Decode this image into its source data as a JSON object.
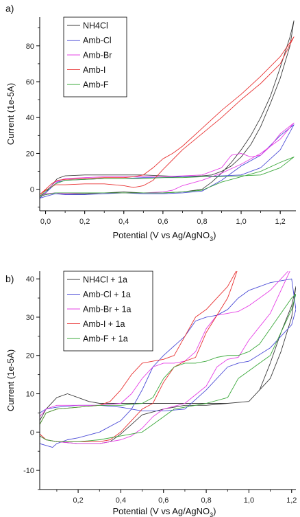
{
  "chart_data": [
    {
      "panel": "a)",
      "type": "line",
      "xlabel": "Potential (V vs Ag/AgNO",
      "xlabel_sub": "3",
      "xlabel_end": ")",
      "ylabel": "Current (1e-5A)",
      "xlim": [
        -0.03,
        1.28
      ],
      "ylim": [
        -12,
        96
      ],
      "xticks": [
        0.0,
        0.2,
        0.4,
        0.6,
        0.8,
        1.0,
        1.2
      ],
      "xtick_labels": [
        "0,0",
        "0,2",
        "0,4",
        "0,6",
        "0,8",
        "1,0",
        "1,2"
      ],
      "yticks": [
        0,
        20,
        40,
        60,
        80
      ],
      "ytick_labels": [
        "0",
        "20",
        "40",
        "60",
        "80"
      ],
      "legend_position": "top-left",
      "series": [
        {
          "name": "NH4Cl",
          "color": "#3a3a3a",
          "x": [
            -0.03,
            0.0,
            0.03,
            0.06,
            0.1,
            0.2,
            0.3,
            0.4,
            0.5,
            0.6,
            0.7,
            0.8,
            0.85,
            0.9,
            0.95,
            1.0,
            1.05,
            1.1,
            1.15,
            1.2,
            1.25,
            1.27,
            1.25,
            1.2,
            1.15,
            1.1,
            1.05,
            1.0,
            0.95,
            0.9,
            0.85,
            0.8,
            0.7,
            0.6,
            0.5,
            0.4,
            0.3,
            0.2,
            0.1,
            0.05,
            0.0,
            -0.03
          ],
          "y": [
            -4,
            -2,
            2,
            6,
            7.5,
            8,
            8,
            8,
            8,
            7.5,
            7,
            7.5,
            8,
            10,
            13,
            18,
            25,
            35,
            48,
            62,
            80,
            94,
            85,
            68,
            52,
            40,
            30,
            22,
            15,
            9,
            4,
            0,
            -1.5,
            -2,
            -2,
            -1.5,
            -2,
            -2.5,
            -2.5,
            -2,
            -3,
            -4
          ]
        },
        {
          "name": "Amb-Cl",
          "color": "#4a4ad6",
          "x": [
            -0.03,
            0.0,
            0.03,
            0.06,
            0.1,
            0.2,
            0.3,
            0.4,
            0.5,
            0.6,
            0.7,
            0.8,
            0.9,
            1.0,
            1.1,
            1.2,
            1.27,
            1.2,
            1.1,
            1.0,
            0.9,
            0.8,
            0.7,
            0.6,
            0.5,
            0.4,
            0.3,
            0.2,
            0.1,
            0.05,
            0.0,
            -0.03
          ],
          "y": [
            -5,
            -2,
            1,
            4,
            5,
            5.5,
            6,
            6,
            6.5,
            6.5,
            7,
            7,
            7.5,
            8,
            12,
            22,
            36,
            30,
            19,
            13,
            5,
            -1,
            -2,
            -2.5,
            -2.5,
            -2,
            -2.5,
            -3,
            -3,
            -2.5,
            -4,
            -5
          ]
        },
        {
          "name": "Amb-Br",
          "color": "#e640e6",
          "x": [
            -0.03,
            0.0,
            0.05,
            0.1,
            0.2,
            0.3,
            0.4,
            0.5,
            0.6,
            0.7,
            0.8,
            0.9,
            0.95,
            1.0,
            1.05,
            1.1,
            1.15,
            1.2,
            1.27,
            1.2,
            1.1,
            1.0,
            0.9,
            0.8,
            0.7,
            0.65,
            0.6,
            0.5,
            0.4,
            0.3,
            0.2,
            0.1,
            0.05,
            0.0,
            -0.03
          ],
          "y": [
            -4,
            -1,
            4,
            6,
            6.5,
            7,
            7,
            7,
            7,
            7.5,
            8,
            12,
            19,
            20,
            18,
            19,
            24,
            31,
            37,
            28,
            20,
            14,
            9,
            5,
            2,
            -0.5,
            -1.5,
            -2,
            -2,
            -2,
            -2,
            -2.5,
            -2,
            -2.5,
            -4
          ]
        },
        {
          "name": "Amb-I",
          "color": "#e83030",
          "x": [
            -0.03,
            0.0,
            0.03,
            0.06,
            0.1,
            0.2,
            0.3,
            0.4,
            0.45,
            0.5,
            0.55,
            0.6,
            0.65,
            0.7,
            0.8,
            0.9,
            1.0,
            1.1,
            1.2,
            1.27,
            1.2,
            1.1,
            1.0,
            0.9,
            0.8,
            0.7,
            0.6,
            0.55,
            0.5,
            0.45,
            0.4,
            0.3,
            0.2,
            0.1,
            0.05,
            0.0,
            -0.03
          ],
          "y": [
            -3,
            0,
            3,
            5,
            5.5,
            6,
            6.5,
            6.5,
            7,
            8,
            12,
            17,
            20,
            24,
            34,
            44,
            53,
            63,
            74,
            85,
            70,
            59,
            50,
            40,
            31,
            22,
            11,
            5,
            2,
            1,
            2,
            3,
            3,
            2.5,
            2.5,
            -0.5,
            -3
          ]
        },
        {
          "name": "Amb-F",
          "color": "#3aa83a",
          "x": [
            -0.03,
            0.0,
            0.05,
            0.1,
            0.2,
            0.3,
            0.4,
            0.5,
            0.6,
            0.7,
            0.8,
            0.9,
            1.0,
            1.1,
            1.2,
            1.27,
            1.2,
            1.1,
            1.0,
            0.9,
            0.8,
            0.7,
            0.6,
            0.5,
            0.4,
            0.3,
            0.2,
            0.1,
            0.05,
            0.0,
            -0.03
          ],
          "y": [
            -4,
            -1,
            3,
            5,
            5.5,
            6,
            6,
            6,
            6.5,
            6.5,
            7,
            7,
            7.5,
            8,
            12,
            18,
            15,
            10,
            7,
            4,
            -0.5,
            -1.5,
            -2,
            -2,
            -2,
            -2,
            -2,
            -2,
            -2,
            -3,
            -4
          ]
        }
      ]
    },
    {
      "panel": "b)",
      "type": "line",
      "xlabel": "Potential (V vs Ag/AgNO",
      "xlabel_sub": "3",
      "xlabel_end": ")",
      "ylabel": "Current (1e-5A)",
      "xlim": [
        0.02,
        1.22
      ],
      "ylim": [
        -15,
        42
      ],
      "xticks": [
        0.2,
        0.4,
        0.6,
        0.8,
        1.0,
        1.2
      ],
      "xtick_labels": [
        "0,2",
        "0,4",
        "0,6",
        "0,8",
        "1,0",
        "1,2"
      ],
      "yticks": [
        -10,
        0,
        10,
        20,
        30,
        40
      ],
      "ytick_labels": [
        "-10",
        "0",
        "10",
        "20",
        "30",
        "40"
      ],
      "legend_position": "top-left",
      "series": [
        {
          "name": "NH4Cl + 1a",
          "color": "#3a3a3a",
          "x": [
            0.02,
            0.05,
            0.1,
            0.15,
            0.2,
            0.25,
            0.3,
            0.4,
            0.5,
            0.6,
            0.7,
            0.8,
            0.9,
            1.0,
            1.05,
            1.1,
            1.15,
            1.2,
            1.22,
            1.2,
            1.15,
            1.1,
            1.0,
            0.9,
            0.8,
            0.7,
            0.6,
            0.5,
            0.45,
            0.4,
            0.35,
            0.3,
            0.2,
            0.1,
            0.05,
            0.02
          ],
          "y": [
            3,
            6,
            9,
            10,
            9,
            8,
            7.5,
            7.5,
            7.5,
            7.5,
            7.5,
            7.5,
            7.5,
            8,
            11,
            18,
            26,
            33,
            38,
            30,
            21,
            14,
            8,
            7.5,
            7,
            7,
            6,
            4.5,
            2,
            -0.5,
            -2.5,
            -3,
            -3,
            -2.5,
            -2,
            -1
          ]
        },
        {
          "name": "Amb-Cl + 1a",
          "color": "#4a4ad6",
          "x": [
            0.02,
            0.05,
            0.08,
            0.1,
            0.15,
            0.2,
            0.3,
            0.4,
            0.45,
            0.5,
            0.55,
            0.6,
            0.7,
            0.75,
            0.8,
            0.85,
            0.9,
            0.95,
            1.0,
            1.1,
            1.2,
            1.22,
            1.2,
            1.1,
            1.0,
            0.95,
            0.9,
            0.8,
            0.7,
            0.6,
            0.5,
            0.45,
            0.4,
            0.3,
            0.2,
            0.1,
            0.05,
            0.02
          ],
          "y": [
            -3,
            -3.5,
            -4,
            -3,
            -2,
            -1.5,
            0,
            3,
            6,
            11,
            17,
            20,
            25,
            29,
            30,
            30.5,
            32,
            35,
            37,
            39,
            40,
            32,
            28,
            22,
            18.5,
            18,
            17,
            11,
            6,
            5.5,
            5.5,
            6,
            6.5,
            7,
            7,
            6.5,
            6,
            5
          ]
        },
        {
          "name": "Amb-Br + 1a",
          "color": "#e640e6",
          "x": [
            0.02,
            0.05,
            0.1,
            0.2,
            0.3,
            0.4,
            0.45,
            0.5,
            0.55,
            0.6,
            0.65,
            0.7,
            0.75,
            0.8,
            0.85,
            0.9,
            0.95,
            1.0,
            1.05,
            1.1,
            1.15,
            1.2,
            1.15,
            1.1,
            1.0,
            0.95,
            0.9,
            0.85,
            0.8,
            0.7,
            0.6,
            0.55,
            0.5,
            0.45,
            0.4,
            0.3,
            0.2,
            0.1,
            0.05,
            0.02
          ],
          "y": [
            4,
            6,
            7,
            7,
            7,
            7.5,
            10,
            14,
            17,
            18,
            18,
            18.5,
            21,
            27,
            30.5,
            31,
            31.5,
            33,
            35,
            37,
            40,
            43,
            37,
            31,
            24,
            19.5,
            19,
            17,
            12,
            7.5,
            6,
            4,
            1,
            -1,
            -2,
            -3,
            -3,
            -2.5,
            -2,
            -1
          ]
        },
        {
          "name": "Amb-I + 1a",
          "color": "#e83030",
          "x": [
            0.02,
            0.05,
            0.1,
            0.2,
            0.3,
            0.35,
            0.4,
            0.45,
            0.5,
            0.55,
            0.6,
            0.65,
            0.7,
            0.75,
            0.8,
            0.85,
            0.9,
            0.95,
            0.92,
            0.9,
            0.85,
            0.8,
            0.75,
            0.7,
            0.65,
            0.6,
            0.55,
            0.5,
            0.45,
            0.4,
            0.35,
            0.3,
            0.2,
            0.1,
            0.05,
            0.02
          ],
          "y": [
            2,
            5,
            6,
            6.5,
            7,
            8,
            11,
            15,
            18,
            18.5,
            19,
            20,
            25,
            30,
            32,
            35,
            38,
            43,
            38,
            35,
            30.5,
            26,
            19.5,
            18.5,
            17,
            13,
            7.5,
            6,
            3,
            0,
            -2,
            -2.5,
            -2.5,
            -2.5,
            -2,
            -0.5
          ]
        },
        {
          "name": "Amb-F + 1a",
          "color": "#3aa83a",
          "x": [
            0.02,
            0.05,
            0.1,
            0.2,
            0.3,
            0.4,
            0.5,
            0.55,
            0.6,
            0.65,
            0.7,
            0.75,
            0.8,
            0.85,
            0.9,
            0.95,
            1.0,
            1.05,
            1.1,
            1.15,
            1.2,
            1.22,
            1.2,
            1.15,
            1.1,
            1.05,
            1.0,
            0.95,
            0.9,
            0.8,
            0.7,
            0.65,
            0.6,
            0.55,
            0.5,
            0.4,
            0.3,
            0.2,
            0.1,
            0.05,
            0.02
          ],
          "y": [
            2,
            5,
            6,
            6.5,
            7,
            7,
            7.5,
            9,
            14,
            17,
            18,
            18,
            18.5,
            19.5,
            20,
            20,
            21,
            23,
            27,
            31,
            35,
            36,
            32,
            26,
            20,
            18,
            16,
            14,
            9,
            7.5,
            6.5,
            6,
            4,
            2,
            0,
            -1,
            -2,
            -2.5,
            -2.5,
            -2,
            -1
          ]
        }
      ]
    }
  ]
}
